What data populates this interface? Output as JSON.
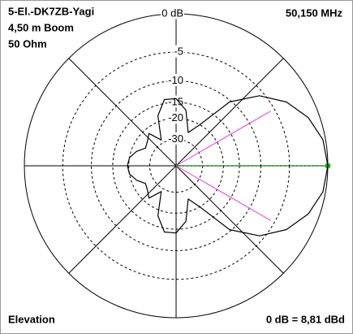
{
  "chart_data": {
    "type": "polar",
    "title": "5-El.-DK7ZB-Yagi",
    "subtitle_lines": [
      "4,50 m Boom",
      "50 Ohm"
    ],
    "frequency": "50,150 MHz",
    "plane": "Elevation",
    "reference": "0 dB = 8,81 dBd",
    "rscale": "arrl-log",
    "rlim": [
      -30,
      0
    ],
    "rticks": [
      {
        "value": 0,
        "label": "0 dB"
      },
      -5,
      -10,
      -15,
      -20,
      -30
    ],
    "x": [
      0,
      10,
      20,
      30,
      40,
      50,
      60,
      70,
      80,
      90,
      100,
      110,
      120,
      130,
      140,
      150,
      160,
      170,
      180,
      190,
      200,
      210,
      220,
      230,
      240,
      250,
      260,
      270,
      280,
      290,
      300,
      310,
      320,
      330,
      340,
      350
    ],
    "values": [
      0,
      -0.3,
      -1.3,
      -3,
      -5.7,
      -10.3,
      -20,
      -25,
      -17,
      -14,
      -14,
      -18,
      -28,
      -22,
      -24,
      -25,
      -22,
      -20,
      -19.5,
      -20,
      -22,
      -25,
      -24,
      -22,
      -28,
      -18,
      -14,
      -14,
      -17,
      -25,
      -20,
      -10.3,
      -5.7,
      -3,
      -1.3,
      -0.3
    ],
    "color": "#000000",
    "half_power_angles": [
      30,
      330
    ],
    "half_power_color": "#e040e0",
    "max_angle": 0,
    "max_color": "#20b020",
    "grid": true
  }
}
